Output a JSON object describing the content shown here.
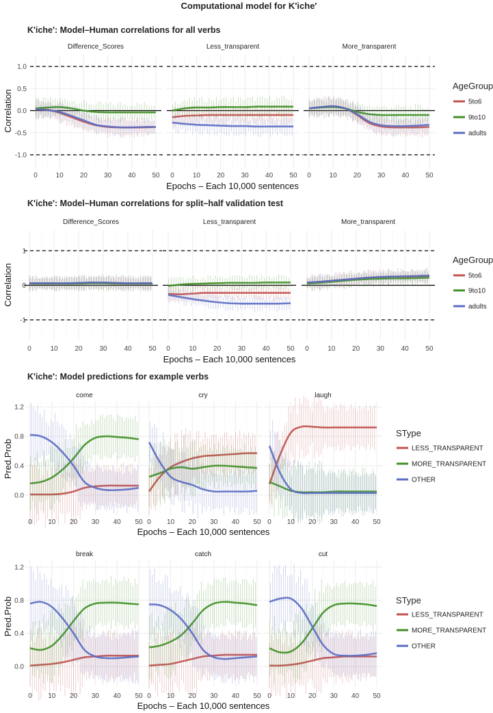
{
  "title": "Computational model for K'iche'",
  "colors": {
    "red": "#c0504d",
    "green": "#3f8f25",
    "blue": "#5a6bc2"
  },
  "chart_data": [
    {
      "type": "line",
      "title": "K'iche': Model–Human correlations for all verbs",
      "xlabel": "Epochs – Each 10,000 sentences",
      "ylabel": "Correlation",
      "xlim": [
        0,
        50
      ],
      "ylim": [
        -1.35,
        1.35
      ],
      "xticks": [
        "0",
        "10",
        "20",
        "30",
        "40",
        "50"
      ],
      "yticks": [
        {
          "v": 1.0,
          "label": "1.0"
        },
        {
          "v": 0.5,
          "label": "0.5"
        },
        {
          "v": 0.0,
          "label": "0.0"
        },
        {
          "v": -0.5,
          "label": "-0.5"
        },
        {
          "v": -1.0,
          "label": "-1.0"
        }
      ],
      "ref_lines": {
        "solid": 0,
        "dashed": [
          1,
          -1
        ]
      },
      "legend": {
        "title": "AgeGroup",
        "placement": "right",
        "entries": [
          "5to6",
          "9to10",
          "adults"
        ]
      },
      "x": [
        0,
        5,
        10,
        15,
        20,
        25,
        30,
        35,
        40,
        45,
        50
      ],
      "panels": [
        {
          "label": "Difference_Scores",
          "series": [
            {
              "name": "5to6",
              "values": [
                0.02,
                0.02,
                -0.05,
                -0.15,
                -0.25,
                -0.33,
                -0.37,
                -0.38,
                -0.38,
                -0.38,
                -0.37
              ]
            },
            {
              "name": "9to10",
              "values": [
                0.05,
                0.07,
                0.08,
                0.05,
                0.0,
                -0.03,
                -0.04,
                -0.04,
                -0.04,
                -0.04,
                -0.04
              ]
            },
            {
              "name": "adults",
              "values": [
                0.03,
                0.01,
                -0.03,
                -0.12,
                -0.22,
                -0.32,
                -0.36,
                -0.38,
                -0.38,
                -0.37,
                -0.37
              ]
            }
          ]
        },
        {
          "label": "Less_transparent",
          "series": [
            {
              "name": "5to6",
              "values": [
                -0.15,
                -0.12,
                -0.11,
                -0.1,
                -0.1,
                -0.1,
                -0.1,
                -0.1,
                -0.1,
                -0.1,
                -0.1
              ]
            },
            {
              "name": "9to10",
              "values": [
                0.0,
                0.05,
                0.07,
                0.07,
                0.08,
                0.08,
                0.08,
                0.09,
                0.09,
                0.09,
                0.09
              ]
            },
            {
              "name": "adults",
              "values": [
                -0.27,
                -0.3,
                -0.32,
                -0.33,
                -0.34,
                -0.35,
                -0.35,
                -0.36,
                -0.36,
                -0.36,
                -0.36
              ]
            }
          ]
        },
        {
          "label": "More_transparent",
          "series": [
            {
              "name": "5to6",
              "values": [
                0.05,
                0.08,
                0.1,
                0.05,
                -0.1,
                -0.28,
                -0.36,
                -0.38,
                -0.38,
                -0.38,
                -0.37
              ]
            },
            {
              "name": "9to10",
              "values": [
                0.05,
                0.07,
                0.08,
                0.05,
                -0.03,
                -0.08,
                -0.1,
                -0.1,
                -0.1,
                -0.1,
                -0.1
              ]
            },
            {
              "name": "adults",
              "values": [
                0.05,
                0.08,
                0.1,
                0.05,
                -0.08,
                -0.25,
                -0.33,
                -0.35,
                -0.35,
                -0.34,
                -0.32
              ]
            }
          ]
        }
      ]
    },
    {
      "type": "line",
      "title": "K'iche': Model–Human correlations for split–half validation test",
      "xlabel": "Epochs – Each 10,000 sentences",
      "ylabel": "Correlation",
      "xlim": [
        0,
        50
      ],
      "ylim": [
        -1.6,
        1.6
      ],
      "xticks": [
        "0",
        "10",
        "20",
        "30",
        "40",
        "50"
      ],
      "yticks": [
        {
          "v": 1,
          "label": "1"
        },
        {
          "v": 0,
          "label": "0"
        },
        {
          "v": -1,
          "label": "-1"
        }
      ],
      "ref_lines": {
        "solid": 0,
        "dashed": [
          1,
          -1
        ]
      },
      "legend": {
        "title": "AgeGroup",
        "placement": "right",
        "entries": [
          "5to6",
          "9to10",
          "adults"
        ]
      },
      "x": [
        0,
        5,
        10,
        15,
        20,
        25,
        30,
        35,
        40,
        45,
        50
      ],
      "panels": [
        {
          "label": "Difference_Scores",
          "series": [
            {
              "name": "5to6",
              "values": [
                0.05,
                0.05,
                0.05,
                0.05,
                0.06,
                0.07,
                0.07,
                0.06,
                0.05,
                0.05,
                0.05
              ]
            },
            {
              "name": "9to10",
              "values": [
                0.05,
                0.05,
                0.05,
                0.05,
                0.05,
                0.06,
                0.06,
                0.05,
                0.05,
                0.05,
                0.05
              ]
            },
            {
              "name": "adults",
              "values": [
                0.06,
                0.06,
                0.06,
                0.06,
                0.07,
                0.08,
                0.08,
                0.07,
                0.06,
                0.06,
                0.06
              ]
            }
          ]
        },
        {
          "label": "Less_transparent",
          "series": [
            {
              "name": "5to6",
              "values": [
                -0.25,
                -0.26,
                -0.24,
                -0.22,
                -0.22,
                -0.22,
                -0.22,
                -0.22,
                -0.22,
                -0.22,
                -0.22
              ]
            },
            {
              "name": "9to10",
              "values": [
                -0.02,
                0.02,
                0.04,
                0.05,
                0.06,
                0.07,
                0.07,
                0.07,
                0.08,
                0.08,
                0.08
              ]
            },
            {
              "name": "adults",
              "values": [
                -0.28,
                -0.34,
                -0.4,
                -0.45,
                -0.49,
                -0.52,
                -0.53,
                -0.53,
                -0.53,
                -0.53,
                -0.52
              ]
            }
          ]
        },
        {
          "label": "More_transparent",
          "series": [
            {
              "name": "5to6",
              "values": [
                0.08,
                0.1,
                0.13,
                0.16,
                0.19,
                0.22,
                0.24,
                0.25,
                0.25,
                0.26,
                0.27
              ]
            },
            {
              "name": "9to10",
              "values": [
                0.05,
                0.07,
                0.1,
                0.13,
                0.16,
                0.18,
                0.19,
                0.2,
                0.2,
                0.21,
                0.22
              ]
            },
            {
              "name": "adults",
              "values": [
                0.08,
                0.1,
                0.13,
                0.16,
                0.19,
                0.22,
                0.24,
                0.25,
                0.26,
                0.27,
                0.28
              ]
            }
          ]
        }
      ]
    },
    {
      "type": "line",
      "title": "K'iche': Model predictions for example verbs",
      "xlabel": "Epochs – Each 10,000 sentences",
      "ylabel": "Pred.Prob",
      "xlim": [
        0,
        50
      ],
      "ylim": [
        -0.3,
        1.25
      ],
      "xticks": [
        "0",
        "10",
        "20",
        "30",
        "40",
        "50"
      ],
      "yticks": [
        {
          "v": 1.2,
          "label": "1.2"
        },
        {
          "v": 0.8,
          "label": "0.8"
        },
        {
          "v": 0.4,
          "label": "0.4"
        },
        {
          "v": 0.0,
          "label": "0.0"
        }
      ],
      "legend": {
        "title": "SType",
        "placement": "right",
        "entries": [
          "LESS_TRANSPARENT",
          "MORE_TRANSPARENT",
          "OTHER"
        ]
      },
      "x": [
        0,
        5,
        10,
        15,
        20,
        25,
        30,
        35,
        40,
        45,
        50
      ],
      "panels": [
        {
          "label": "come",
          "series": [
            {
              "name": "LESS_TRANSPARENT",
              "values": [
                0.01,
                0.01,
                0.01,
                0.02,
                0.05,
                0.1,
                0.12,
                0.13,
                0.13,
                0.13,
                0.13
              ]
            },
            {
              "name": "MORE_TRANSPARENT",
              "values": [
                0.16,
                0.18,
                0.24,
                0.35,
                0.5,
                0.68,
                0.78,
                0.8,
                0.79,
                0.78,
                0.76
              ]
            },
            {
              "name": "OTHER",
              "values": [
                0.82,
                0.8,
                0.72,
                0.58,
                0.4,
                0.18,
                0.1,
                0.07,
                0.07,
                0.08,
                0.1
              ]
            }
          ]
        },
        {
          "label": "cry",
          "series": [
            {
              "name": "LESS_TRANSPARENT",
              "values": [
                0.05,
                0.25,
                0.38,
                0.45,
                0.5,
                0.53,
                0.54,
                0.55,
                0.56,
                0.57,
                0.57
              ]
            },
            {
              "name": "MORE_TRANSPARENT",
              "values": [
                0.25,
                0.3,
                0.36,
                0.38,
                0.36,
                0.38,
                0.4,
                0.4,
                0.39,
                0.38,
                0.37
              ]
            },
            {
              "name": "OTHER",
              "values": [
                0.72,
                0.45,
                0.25,
                0.18,
                0.14,
                0.08,
                0.05,
                0.05,
                0.05,
                0.05,
                0.06
              ]
            }
          ]
        },
        {
          "label": "laugh",
          "series": [
            {
              "name": "LESS_TRANSPARENT",
              "values": [
                0.15,
                0.55,
                0.85,
                0.93,
                0.93,
                0.92,
                0.92,
                0.92,
                0.92,
                0.92,
                0.92
              ]
            },
            {
              "name": "MORE_TRANSPARENT",
              "values": [
                0.18,
                0.12,
                0.06,
                0.04,
                0.04,
                0.04,
                0.05,
                0.05,
                0.05,
                0.05,
                0.05
              ]
            },
            {
              "name": "OTHER",
              "values": [
                0.67,
                0.3,
                0.08,
                0.03,
                0.03,
                0.03,
                0.03,
                0.03,
                0.03,
                0.03,
                0.03
              ]
            }
          ]
        }
      ]
    },
    {
      "type": "line",
      "title": "",
      "xlabel": "Epochs – Each 10,000 sentences",
      "ylabel": "Pred.Prob",
      "xlim": [
        0,
        50
      ],
      "ylim": [
        -0.3,
        1.25
      ],
      "xticks": [
        "0",
        "10",
        "20",
        "30",
        "40",
        "50"
      ],
      "yticks": [
        {
          "v": 1.2,
          "label": "1.2"
        },
        {
          "v": 0.8,
          "label": "0.8"
        },
        {
          "v": 0.4,
          "label": "0.4"
        },
        {
          "v": 0.0,
          "label": "0.0"
        }
      ],
      "legend": {
        "title": "SType",
        "placement": "right",
        "entries": [
          "LESS_TRANSPARENT",
          "MORE_TRANSPARENT",
          "OTHER"
        ]
      },
      "x": [
        0,
        5,
        10,
        15,
        20,
        25,
        30,
        35,
        40,
        45,
        50
      ],
      "panels": [
        {
          "label": "break",
          "series": [
            {
              "name": "LESS_TRANSPARENT",
              "values": [
                0.01,
                0.02,
                0.03,
                0.05,
                0.08,
                0.11,
                0.12,
                0.13,
                0.13,
                0.13,
                0.13
              ]
            },
            {
              "name": "MORE_TRANSPARENT",
              "values": [
                0.22,
                0.2,
                0.25,
                0.38,
                0.55,
                0.7,
                0.76,
                0.77,
                0.77,
                0.76,
                0.75
              ]
            },
            {
              "name": "OTHER",
              "values": [
                0.76,
                0.78,
                0.72,
                0.58,
                0.4,
                0.2,
                0.12,
                0.1,
                0.1,
                0.11,
                0.12
              ]
            }
          ]
        },
        {
          "label": "catch",
          "series": [
            {
              "name": "LESS_TRANSPARENT",
              "values": [
                0.01,
                0.02,
                0.03,
                0.06,
                0.09,
                0.12,
                0.13,
                0.14,
                0.14,
                0.14,
                0.14
              ]
            },
            {
              "name": "MORE_TRANSPARENT",
              "values": [
                0.23,
                0.25,
                0.3,
                0.38,
                0.52,
                0.68,
                0.76,
                0.78,
                0.77,
                0.76,
                0.74
              ]
            },
            {
              "name": "OTHER",
              "values": [
                0.75,
                0.74,
                0.68,
                0.57,
                0.4,
                0.2,
                0.11,
                0.09,
                0.1,
                0.11,
                0.12
              ]
            }
          ]
        },
        {
          "label": "cut",
          "series": [
            {
              "name": "LESS_TRANSPARENT",
              "values": [
                0.01,
                0.01,
                0.02,
                0.04,
                0.07,
                0.1,
                0.11,
                0.12,
                0.12,
                0.12,
                0.12
              ]
            },
            {
              "name": "MORE_TRANSPARENT",
              "values": [
                0.22,
                0.17,
                0.18,
                0.28,
                0.46,
                0.65,
                0.74,
                0.76,
                0.76,
                0.75,
                0.73
              ]
            },
            {
              "name": "OTHER",
              "values": [
                0.78,
                0.82,
                0.82,
                0.7,
                0.48,
                0.26,
                0.15,
                0.13,
                0.13,
                0.14,
                0.16
              ]
            }
          ]
        }
      ]
    }
  ]
}
